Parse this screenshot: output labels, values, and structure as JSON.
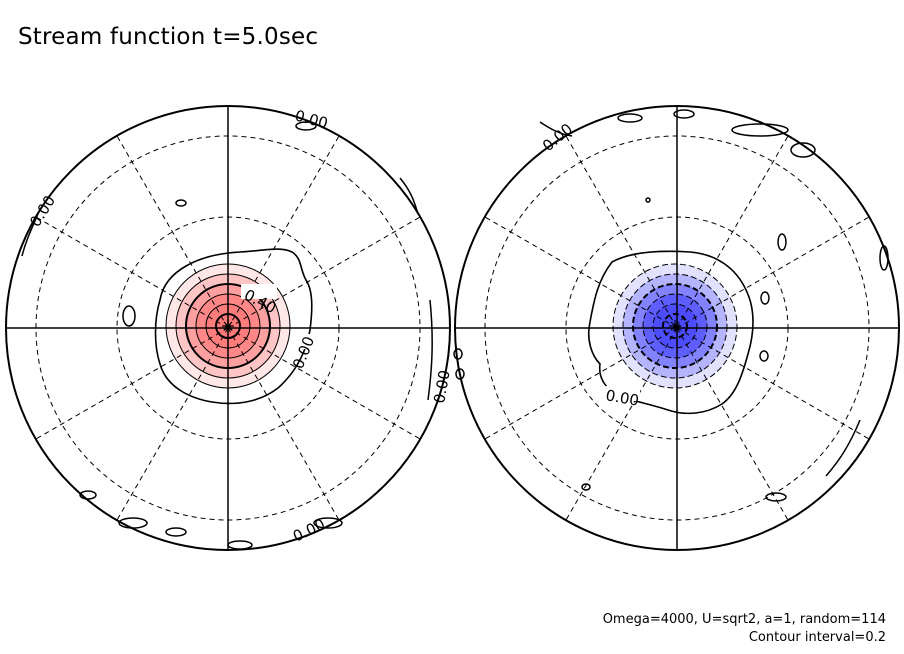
{
  "title": "Stream function t=5.0sec",
  "footer": {
    "params": "Omega=4000, U=sqrt2, a=1, random=114",
    "interval": "Contour interval=0.2"
  },
  "colors": {
    "positive_fill": "#ff7a7a",
    "negative_fill": "#4a4aff",
    "line": "#000000",
    "background": "#ffffff"
  },
  "hemispheres": [
    {
      "name": "left",
      "sign": "positive",
      "contour_levels": [
        0.2,
        0.4,
        0.6,
        0.8,
        1.0,
        1.2
      ],
      "labels": [
        "0.00",
        "0.00",
        "0.40",
        "0.00",
        "0.00"
      ]
    },
    {
      "name": "right",
      "sign": "negative",
      "contour_levels": [
        -0.2,
        -0.4,
        -0.6,
        -0.8,
        -1.0,
        -1.2
      ],
      "labels": [
        "0.00",
        "0.00",
        "0.00"
      ]
    }
  ]
}
